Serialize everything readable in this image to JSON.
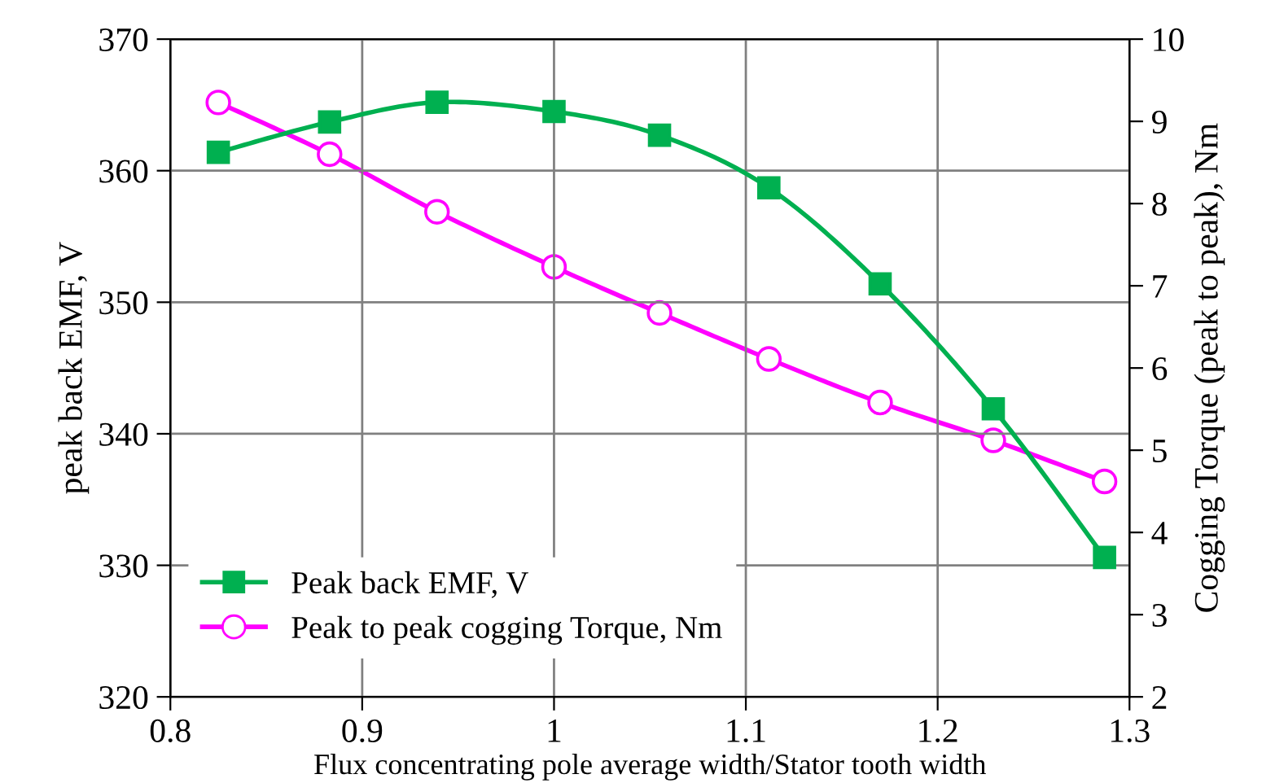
{
  "chart_data": {
    "type": "line",
    "xlabel": "Flux concentrating pole average width/Stator tooth width",
    "ylabel": "peak back EMF, V",
    "y2label": "Cogging Torque (peak to peak), Nm",
    "x": [
      0.825,
      0.883,
      0.939,
      1.0,
      1.055,
      1.112,
      1.17,
      1.229,
      1.287
    ],
    "series": [
      {
        "name": "Peak back EMF, V",
        "color": "#00b050",
        "marker": "square",
        "values": [
          361.4,
          363.7,
          365.2,
          364.5,
          362.7,
          358.7,
          351.4,
          341.9,
          330.6
        ]
      },
      {
        "name": "Peak to peak cogging Torque, Nm",
        "color": "#ff00ff",
        "marker": "circle",
        "axis": "y2",
        "values": [
          9.23,
          8.6,
          7.9,
          7.23,
          6.67,
          6.11,
          5.58,
          5.12,
          4.62
        ]
      }
    ],
    "xlim": [
      0.8,
      1.3
    ],
    "xticks": [
      0.8,
      0.9,
      1,
      1.1,
      1.2,
      1.3
    ],
    "ylim": [
      320,
      370
    ],
    "yticks": [
      320,
      330,
      340,
      350,
      360,
      370
    ],
    "y2lim": [
      2,
      10
    ],
    "y2ticks": [
      2,
      3,
      4,
      5,
      6,
      7,
      8,
      9,
      10
    ],
    "grid": true,
    "legend": "lower left",
    "line_style": "solid"
  }
}
